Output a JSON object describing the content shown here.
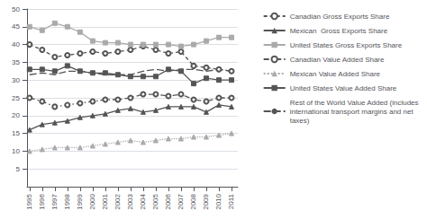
{
  "chart_data": {
    "type": "line",
    "x": [
      1995,
      1996,
      1997,
      1998,
      1999,
      2000,
      2001,
      2002,
      2003,
      2004,
      2005,
      2006,
      2007,
      2008,
      2009,
      2010,
      2011
    ],
    "xlim": [
      1994.8,
      2011.5
    ],
    "xticks": [
      1995,
      1996,
      1997,
      1998,
      1999,
      2000,
      2001,
      2002,
      2003,
      2004,
      2005,
      2006,
      2007,
      2008,
      2009,
      2010,
      2011
    ],
    "ylim": [
      0,
      50
    ],
    "yticks": [
      5,
      10,
      15,
      20,
      25,
      30,
      35,
      40,
      45,
      50
    ],
    "grid": true,
    "legend": "right",
    "series": [
      {
        "name": "Canadian Gross Exports Share",
        "color": "#555555",
        "marker": "open_circle",
        "line_style": "dashed",
        "values": [
          40.0,
          38.5,
          36.5,
          37.0,
          37.5,
          38.0,
          37.5,
          38.0,
          38.5,
          39.5,
          38.5,
          37.5,
          38.0,
          34.0,
          33.5,
          33.0,
          32.5
        ]
      },
      {
        "name": "Mexican  Gross Exports Share",
        "color": "#555555",
        "marker": "triangle",
        "line_style": "solid",
        "values": [
          16.0,
          17.5,
          18.0,
          18.5,
          19.5,
          20.0,
          20.5,
          21.5,
          22.0,
          21.0,
          21.5,
          22.5,
          22.5,
          22.5,
          21.0,
          23.0,
          22.5
        ]
      },
      {
        "name": "United States Gross Exports Share",
        "color": "#aaaaaa",
        "marker": "square",
        "line_style": "solid",
        "values": [
          45.0,
          44.0,
          46.0,
          45.0,
          43.5,
          41.0,
          40.5,
          40.5,
          40.0,
          40.0,
          40.0,
          40.0,
          39.5,
          40.0,
          41.0,
          42.0,
          42.0
        ]
      },
      {
        "name": "Canadian Value Added Share",
        "color": "#555555",
        "marker": "open_circle",
        "line_style": "dashdot",
        "values": [
          25.0,
          24.0,
          22.5,
          23.0,
          23.5,
          24.0,
          24.5,
          24.5,
          25.0,
          26.0,
          26.0,
          25.5,
          26.0,
          24.5,
          24.0,
          25.0,
          25.0
        ]
      },
      {
        "name": "Mexican Value Added Share",
        "color": "#aaaaaa",
        "marker": "triangle",
        "line_style": "dotted",
        "values": [
          10.0,
          10.5,
          11.0,
          11.0,
          11.0,
          11.5,
          12.0,
          12.5,
          13.0,
          12.5,
          13.0,
          13.5,
          13.5,
          14.0,
          14.0,
          14.5,
          15.0
        ]
      },
      {
        "name": "United States Value Added Share",
        "color": "#555555",
        "marker": "square",
        "line_style": "solid",
        "values": [
          33.0,
          33.0,
          32.5,
          34.0,
          32.5,
          32.0,
          32.0,
          31.5,
          31.0,
          31.0,
          31.0,
          33.0,
          32.5,
          29.0,
          30.5,
          30.0,
          30.0
        ]
      },
      {
        "name": "Rest of the World Value Added (includes\ninternational transport margins and net\ntaxes)",
        "color": "#555555",
        "marker": "none",
        "line_style": "longdash",
        "values": [
          31.5,
          32.0,
          31.5,
          32.5,
          32.5,
          32.0,
          31.5,
          31.5,
          31.5,
          32.5,
          33.0,
          32.5,
          33.0,
          33.0,
          32.5,
          33.0,
          32.5
        ]
      }
    ]
  }
}
